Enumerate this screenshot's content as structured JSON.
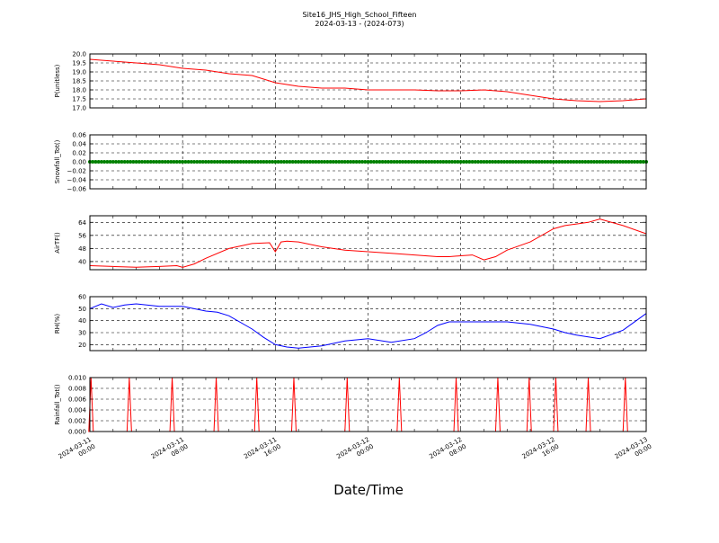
{
  "figure": {
    "title_line1": "Site16_JHS_High_School_Fifteen",
    "title_line2": "2024-03-13 - (2024-073)",
    "xlabel": "Date/Time",
    "xticks": [
      "2024-03-11\n00:00",
      "2024-03-11\n08:00",
      "2024-03-11\n16:00",
      "2024-03-12\n00:00",
      "2024-03-12\n08:00",
      "2024-03-12\n16:00",
      "2024-03-13\n00:00"
    ]
  },
  "chart_data": [
    {
      "type": "line",
      "ylabel": "P(unitless)",
      "color": "#ff0000",
      "ylim": [
        17.0,
        20.0
      ],
      "yticks": [
        "17.0",
        "17.5",
        "18.0",
        "18.5",
        "19.0",
        "19.5",
        "20.0"
      ],
      "ytick_values": [
        17.0,
        17.5,
        18.0,
        18.5,
        19.0,
        19.5,
        20.0
      ],
      "grid": true,
      "x_hours": [
        0,
        2,
        4,
        6,
        8,
        10,
        12,
        14,
        16,
        18,
        20,
        22,
        24,
        26,
        28,
        30,
        32,
        34,
        36,
        38,
        40,
        42,
        44,
        46,
        48
      ],
      "y": [
        19.7,
        19.6,
        19.5,
        19.4,
        19.2,
        19.1,
        18.9,
        18.8,
        18.4,
        18.2,
        18.1,
        18.1,
        18.0,
        18.0,
        18.0,
        17.95,
        17.95,
        18.0,
        17.9,
        17.7,
        17.5,
        17.4,
        17.35,
        17.4,
        17.5
      ]
    },
    {
      "type": "scatter",
      "ylabel": "Snowfall_Tot()",
      "color": "#008000",
      "ylim": [
        -0.06,
        0.06
      ],
      "yticks": [
        "−0.06",
        "−0.04",
        "−0.02",
        "0.00",
        "0.02",
        "0.04",
        "0.06"
      ],
      "ytick_values": [
        -0.06,
        -0.04,
        -0.02,
        0.0,
        0.02,
        0.04,
        0.06
      ],
      "grid": true,
      "x_range": [
        0,
        48
      ],
      "constant_value": 0.0
    },
    {
      "type": "line",
      "ylabel": "AirTF()",
      "color": "#ff0000",
      "ylim": [
        35,
        68
      ],
      "yticks": [
        "40",
        "48",
        "56",
        "64"
      ],
      "ytick_values": [
        40,
        48,
        56,
        64
      ],
      "grid": true,
      "x_hours": [
        0,
        2,
        4,
        6,
        7.5,
        8,
        9,
        10,
        12,
        14,
        15.5,
        16,
        16.5,
        17,
        18,
        20,
        22,
        24,
        26,
        28,
        30,
        31,
        32,
        33,
        34,
        35,
        36,
        38,
        40,
        41,
        42,
        43,
        44,
        46,
        48
      ],
      "y": [
        37.5,
        37.0,
        36.5,
        37.0,
        37.5,
        36.5,
        38.5,
        42,
        48,
        51,
        51.5,
        46,
        52,
        52.5,
        52,
        49,
        47,
        46,
        45,
        44,
        43,
        43,
        43.5,
        44,
        41,
        43,
        47,
        52,
        60,
        62,
        63,
        64,
        66,
        62,
        57
      ]
    },
    {
      "type": "line",
      "ylabel": "RH(%)",
      "color": "#0000ff",
      "ylim": [
        15,
        60
      ],
      "yticks": [
        "20",
        "30",
        "40",
        "50",
        "60"
      ],
      "ytick_values": [
        20,
        30,
        40,
        50,
        60
      ],
      "grid": true,
      "x_hours": [
        0,
        1,
        2,
        3,
        4,
        6,
        8,
        10,
        11,
        12,
        14,
        15,
        16,
        17,
        18,
        20,
        22,
        24,
        26,
        28,
        29,
        30,
        31,
        32,
        34,
        36,
        38,
        40,
        41,
        42,
        44,
        46,
        48
      ],
      "y": [
        50,
        54,
        51,
        53,
        54,
        52,
        52,
        48,
        47,
        44,
        33,
        26,
        20,
        18,
        17,
        19,
        23,
        25,
        22,
        25,
        30,
        36,
        39,
        39,
        39,
        39,
        37,
        33,
        30,
        28,
        25,
        32,
        46
      ]
    },
    {
      "type": "line",
      "ylabel": "Rainfall_Tot()",
      "color": "#ff0000",
      "ylim": [
        0.0,
        0.01
      ],
      "yticks": [
        "0.000",
        "0.002",
        "0.004",
        "0.006",
        "0.008",
        "0.010"
      ],
      "ytick_values": [
        0.0,
        0.002,
        0.004,
        0.006,
        0.008,
        0.01
      ],
      "grid": true,
      "spike_hours": [
        0.1,
        3.4,
        7.1,
        10.9,
        14.4,
        17.6,
        22.2,
        26.7,
        31.6,
        35.2,
        37.9,
        40.2,
        43.0,
        46.2
      ],
      "spike_value": 0.01
    }
  ]
}
